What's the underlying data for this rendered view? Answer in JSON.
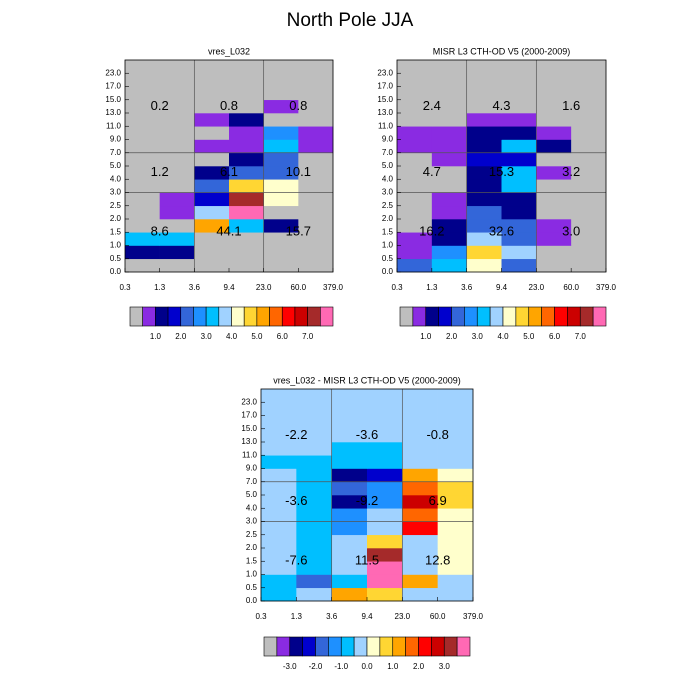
{
  "title": "North Pole JJA",
  "chart_data": [
    {
      "type": "heatmap",
      "title": "vres_L032",
      "x_tick_labels": [
        "0.3",
        "1.3",
        "3.6",
        "9.4",
        "23.0",
        "60.0",
        "379.0"
      ],
      "y_tick_labels": [
        "0.0",
        "0.5",
        "1.0",
        "1.5",
        "2.0",
        "2.5",
        "3.0",
        "4.0",
        "5.0",
        "7.0",
        "9.0",
        "11.0",
        "13.0",
        "15.0",
        "17.0",
        "23.0"
      ],
      "colorbar": {
        "colors": [
          "#bebebe",
          "#8a2be2",
          "#00008b",
          "#0000cd",
          "#3366d9",
          "#1e90ff",
          "#00bfff",
          "#a0d2ff",
          "#ffffcc",
          "#ffd633",
          "#ffa500",
          "#ff6600",
          "#ff0000",
          "#cc0000",
          "#a52a2a",
          "#ff69b4"
        ],
        "labels": [
          "1.0",
          "2.0",
          "3.0",
          "4.0",
          "5.0",
          "6.0",
          "7.0"
        ]
      },
      "cells": [
        [
          0,
          0,
          0,
          0,
          0,
          0
        ],
        [
          2,
          2,
          0,
          0,
          0,
          0
        ],
        [
          6,
          6,
          0,
          0,
          0,
          0
        ],
        [
          0,
          0,
          10,
          6,
          2,
          0
        ],
        [
          0,
          1,
          7,
          15,
          0,
          0
        ],
        [
          0,
          1,
          3,
          14,
          8,
          0
        ],
        [
          0,
          0,
          4,
          9,
          8,
          0
        ],
        [
          0,
          0,
          2,
          4,
          4,
          0
        ],
        [
          0,
          0,
          0,
          2,
          4,
          0
        ],
        [
          0,
          0,
          1,
          1,
          6,
          1
        ],
        [
          0,
          0,
          0,
          1,
          5,
          1
        ],
        [
          0,
          0,
          1,
          2,
          0,
          0
        ],
        [
          0,
          0,
          0,
          0,
          1,
          0
        ],
        [
          0,
          0,
          0,
          0,
          0,
          0
        ],
        [
          0,
          0,
          0,
          0,
          0,
          0
        ],
        [
          0,
          0,
          0,
          0,
          0,
          0
        ]
      ],
      "region_labels": [
        "0.2",
        "0.8",
        "0.8",
        "1.2",
        "6.1",
        "10.1",
        "8.6",
        "44.1",
        "15.7"
      ]
    },
    {
      "type": "heatmap",
      "title": "MISR L3 CTH-OD V5 (2000-2009)",
      "x_tick_labels": [
        "0.3",
        "1.3",
        "3.6",
        "9.4",
        "23.0",
        "60.0",
        "379.0"
      ],
      "y_tick_labels": [
        "0.0",
        "0.5",
        "1.0",
        "1.5",
        "2.0",
        "2.5",
        "3.0",
        "4.0",
        "5.0",
        "7.0",
        "9.0",
        "11.0",
        "13.0",
        "15.0",
        "17.0",
        "23.0"
      ],
      "colorbar": {
        "colors": [
          "#bebebe",
          "#8a2be2",
          "#00008b",
          "#0000cd",
          "#3366d9",
          "#1e90ff",
          "#00bfff",
          "#a0d2ff",
          "#ffffcc",
          "#ffd633",
          "#ffa500",
          "#ff6600",
          "#ff0000",
          "#cc0000",
          "#a52a2a",
          "#ff69b4"
        ],
        "labels": [
          "1.0",
          "2.0",
          "3.0",
          "4.0",
          "5.0",
          "6.0",
          "7.0"
        ]
      },
      "cells": [
        [
          4,
          6,
          8,
          4,
          0,
          0
        ],
        [
          1,
          5,
          9,
          7,
          0,
          0
        ],
        [
          1,
          2,
          7,
          4,
          1,
          0
        ],
        [
          0,
          2,
          4,
          4,
          1,
          0
        ],
        [
          0,
          1,
          4,
          2,
          0,
          0
        ],
        [
          0,
          1,
          2,
          2,
          0,
          0
        ],
        [
          0,
          0,
          2,
          6,
          0,
          0
        ],
        [
          0,
          0,
          2,
          6,
          1,
          0
        ],
        [
          0,
          1,
          3,
          3,
          0,
          0
        ],
        [
          1,
          1,
          2,
          6,
          2,
          0
        ],
        [
          1,
          1,
          2,
          2,
          1,
          0
        ],
        [
          0,
          0,
          1,
          1,
          0,
          0
        ],
        [
          0,
          0,
          0,
          0,
          0,
          0
        ],
        [
          0,
          0,
          0,
          0,
          0,
          0
        ],
        [
          0,
          0,
          0,
          0,
          0,
          0
        ],
        [
          0,
          0,
          0,
          0,
          0,
          0
        ]
      ],
      "region_labels": [
        "2.4",
        "4.3",
        "1.6",
        "4.7",
        "15.3",
        "3.2",
        "16.2",
        "32.6",
        "3.0"
      ]
    },
    {
      "type": "heatmap",
      "title": "vres_L032 - MISR L3 CTH-OD V5 (2000-2009)",
      "x_tick_labels": [
        "0.3",
        "1.3",
        "3.6",
        "9.4",
        "23.0",
        "60.0",
        "379.0"
      ],
      "y_tick_labels": [
        "0.0",
        "0.5",
        "1.0",
        "1.5",
        "2.0",
        "2.5",
        "3.0",
        "4.0",
        "5.0",
        "7.0",
        "9.0",
        "11.0",
        "13.0",
        "15.0",
        "17.0",
        "23.0"
      ],
      "colorbar": {
        "colors": [
          "#bebebe",
          "#8a2be2",
          "#00008b",
          "#0000cd",
          "#3366d9",
          "#1e90ff",
          "#00bfff",
          "#a0d2ff",
          "#ffffcc",
          "#ffd633",
          "#ffa500",
          "#ff6600",
          "#ff0000",
          "#cc0000",
          "#a52a2a",
          "#ff69b4"
        ],
        "labels": [
          "-3.0",
          "-2.0",
          "-1.0",
          "0.0",
          "1.0",
          "2.0",
          "3.0"
        ]
      },
      "cells": [
        [
          6,
          7,
          10,
          9,
          7,
          7
        ],
        [
          6,
          4,
          6,
          15,
          10,
          7
        ],
        [
          7,
          6,
          7,
          15,
          7,
          8
        ],
        [
          7,
          6,
          7,
          14,
          7,
          8
        ],
        [
          7,
          6,
          7,
          9,
          7,
          8
        ],
        [
          7,
          6,
          5,
          7,
          12,
          8
        ],
        [
          7,
          6,
          5,
          7,
          11,
          8
        ],
        [
          7,
          6,
          2,
          5,
          13,
          9
        ],
        [
          7,
          6,
          4,
          5,
          11,
          9
        ],
        [
          7,
          6,
          2,
          3,
          10,
          8
        ],
        [
          6,
          6,
          6,
          6,
          7,
          7
        ],
        [
          7,
          7,
          6,
          6,
          7,
          7
        ],
        [
          7,
          7,
          7,
          7,
          7,
          7
        ],
        [
          7,
          7,
          7,
          7,
          7,
          7
        ],
        [
          7,
          7,
          7,
          7,
          7,
          7
        ],
        [
          7,
          7,
          7,
          7,
          7,
          7
        ]
      ],
      "region_labels": [
        "-2.2",
        "-3.6",
        "-0.8",
        "-3.6",
        "-9.2",
        "6.9",
        "-7.6",
        "11.5",
        "12.8"
      ]
    }
  ]
}
